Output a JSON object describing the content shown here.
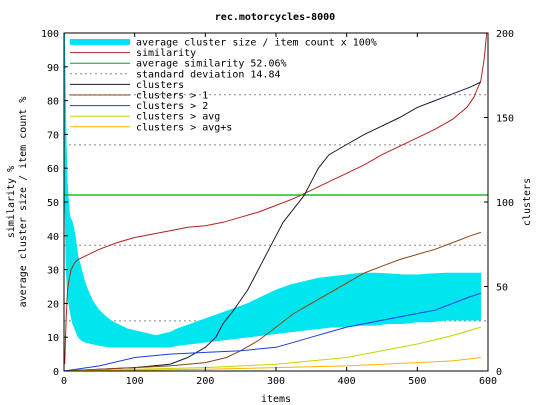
{
  "chart_data": {
    "type": "line",
    "title": "rec.motorcycles-8000",
    "xlabel": "items",
    "ylabel": [
      "average cluster size / item count %",
      "similarity %"
    ],
    "y2label": "clusters",
    "xlim": [
      0,
      600
    ],
    "ylim": [
      0,
      100
    ],
    "y2lim": [
      0,
      200
    ],
    "x_ticks": [
      "0",
      "100",
      "200",
      "300",
      "400",
      "500",
      "600"
    ],
    "y_ticks": [
      "0",
      "10",
      "20",
      "30",
      "40",
      "50",
      "60",
      "70",
      "80",
      "90",
      "100"
    ],
    "y2_ticks": [
      "0",
      "50",
      "100",
      "150",
      "200"
    ],
    "legend_position": "top-left",
    "series": [
      {
        "name": "average cluster size / item count x 100%",
        "axis": "left",
        "color": "#00e5ee",
        "style": "filled-band",
        "x": [
          1,
          3,
          5,
          8,
          12,
          16,
          20,
          25,
          30,
          40,
          50,
          60,
          70,
          80,
          90,
          100,
          110,
          120,
          130,
          140,
          150,
          160,
          180,
          200,
          220,
          240,
          260,
          280,
          300,
          320,
          340,
          360,
          380,
          400,
          420,
          440,
          460,
          480,
          500,
          520,
          540,
          560,
          580,
          590
        ],
        "upper": [
          100,
          70,
          55,
          46,
          44,
          40,
          34,
          30,
          26,
          21,
          18,
          16,
          14.5,
          13.5,
          12.5,
          12,
          11.5,
          11,
          10.5,
          11,
          11.5,
          12.5,
          14,
          15.5,
          17,
          18.5,
          20,
          22,
          24,
          25.5,
          26.5,
          27.5,
          28,
          28.5,
          29,
          29,
          28.8,
          28.5,
          28.5,
          28.8,
          29,
          29,
          29,
          29
        ],
        "lower": [
          50,
          30,
          22,
          18,
          14,
          12,
          10,
          9,
          8.5,
          8,
          7.5,
          7.2,
          7,
          7,
          7,
          7,
          7,
          7,
          7,
          7,
          7,
          7.5,
          8,
          8.5,
          9,
          9.5,
          10,
          10.5,
          11,
          11.5,
          12,
          12.5,
          13,
          13,
          13.5,
          13.5,
          14,
          14,
          14.5,
          14.5,
          15,
          15,
          15,
          15
        ]
      },
      {
        "name": "similarity",
        "axis": "left",
        "color": "#b22222",
        "x": [
          1,
          3,
          5,
          8,
          10,
          15,
          20,
          30,
          50,
          75,
          100,
          125,
          150,
          175,
          200,
          225,
          250,
          275,
          300,
          325,
          350,
          375,
          400,
          425,
          450,
          475,
          500,
          525,
          550,
          570,
          580,
          590,
          595,
          598
        ],
        "values": [
          2,
          15,
          24,
          28,
          30,
          32,
          33,
          34,
          36,
          38,
          39.5,
          40.5,
          41.5,
          42.5,
          43,
          44,
          45.5,
          47,
          49,
          51,
          53.5,
          56,
          58.5,
          61,
          64,
          66.5,
          69,
          71.5,
          74.5,
          78,
          81,
          86,
          93,
          100
        ]
      },
      {
        "name": "average similarity 52.06%",
        "axis": "left",
        "color": "#00aa00",
        "x": [
          0,
          600
        ],
        "values": [
          52.06,
          52.06
        ]
      },
      {
        "name": "standard deviation 14.84",
        "axis": "left",
        "color": "#888888",
        "dashed": true,
        "x": [
          0,
          600
        ],
        "values": [
          14.84,
          14.84
        ],
        "extra_lines": [
          37.22,
          66.9,
          81.74
        ]
      },
      {
        "name": "clusters",
        "axis": "right",
        "color": "#1a1a3a",
        "x": [
          0,
          50,
          100,
          150,
          175,
          200,
          215,
          225,
          240,
          250,
          260,
          270,
          280,
          290,
          300,
          310,
          325,
          340,
          350,
          360,
          375,
          400,
          425,
          450,
          475,
          500,
          525,
          550,
          575,
          590
        ],
        "values": [
          0,
          1,
          2,
          4,
          8,
          14,
          20,
          28,
          36,
          42,
          48,
          56,
          64,
          72,
          80,
          88,
          96,
          104,
          112,
          120,
          128,
          134,
          140,
          145,
          150,
          156,
          160,
          164,
          168,
          171
        ]
      },
      {
        "name": "clusters > 1",
        "axis": "right",
        "color": "#8b4513",
        "x": [
          0,
          50,
          100,
          150,
          200,
          230,
          250,
          275,
          300,
          325,
          350,
          375,
          400,
          425,
          450,
          475,
          500,
          525,
          550,
          575,
          590
        ],
        "values": [
          0,
          1,
          2,
          3,
          5,
          8,
          12,
          18,
          26,
          34,
          40,
          46,
          52,
          58,
          62,
          66,
          69,
          72,
          76,
          80,
          82
        ]
      },
      {
        "name": "clusters > 2",
        "axis": "right",
        "color": "#1d3cdd",
        "x": [
          0,
          50,
          100,
          150,
          200,
          250,
          300,
          325,
          350,
          375,
          400,
          425,
          450,
          475,
          500,
          525,
          550,
          575,
          590
        ],
        "values": [
          0,
          3,
          8,
          10,
          11,
          12,
          14,
          17,
          20,
          23,
          26,
          28,
          30,
          32,
          34,
          36,
          40,
          44,
          46
        ]
      },
      {
        "name": "clusters > avg",
        "axis": "right",
        "color": "#c8d400",
        "x": [
          0,
          100,
          200,
          300,
          350,
          400,
          450,
          500,
          550,
          590
        ],
        "values": [
          0,
          1,
          2,
          4,
          6,
          8,
          12,
          16,
          21,
          26
        ]
      },
      {
        "name": "clusters > avg+s",
        "axis": "right",
        "color": "#ffb400",
        "x": [
          0,
          100,
          200,
          300,
          400,
          450,
          500,
          550,
          590
        ],
        "values": [
          0,
          0.5,
          1,
          2,
          3,
          4,
          5,
          6,
          8
        ]
      }
    ]
  }
}
